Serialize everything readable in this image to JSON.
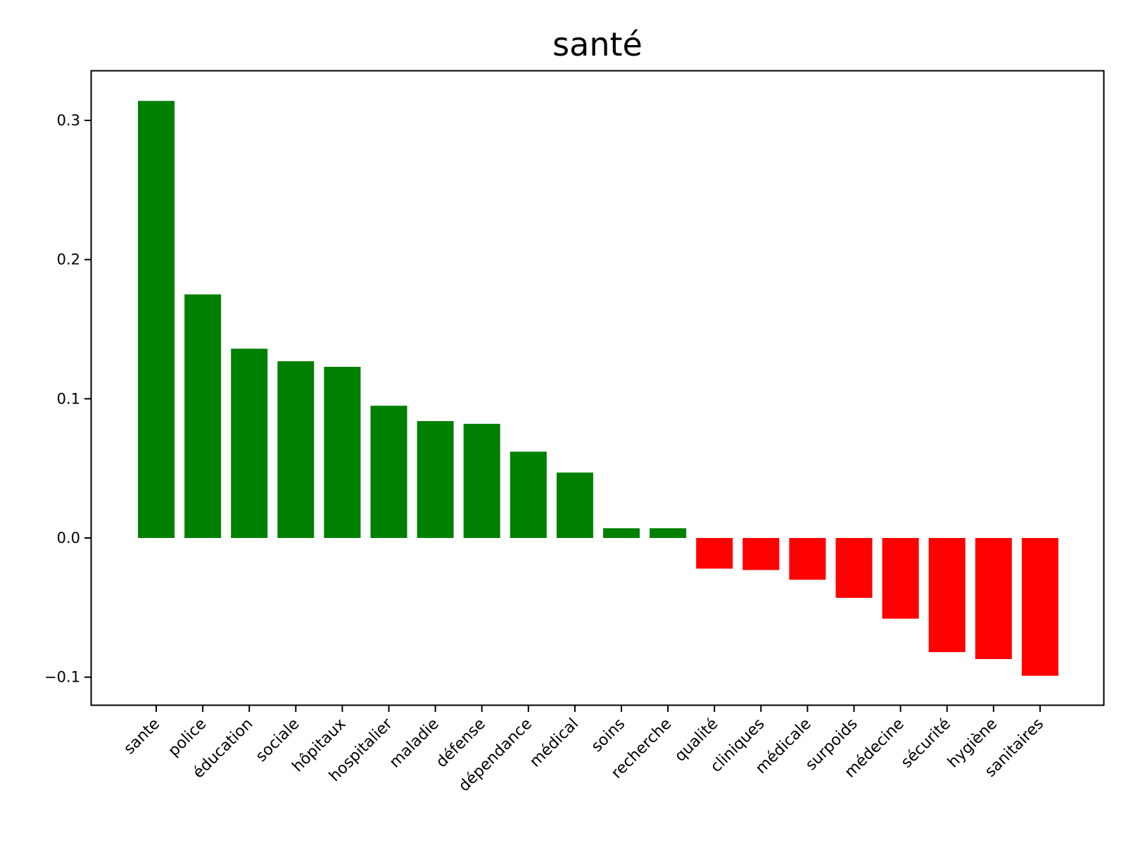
{
  "chart_data": {
    "type": "bar",
    "title": "santé",
    "xlabel": "",
    "ylabel": "",
    "categories": [
      "sante",
      "police",
      "éducation",
      "sociale",
      "hôpitaux",
      "hospitalier",
      "maladie",
      "défense",
      "dépendance",
      "médical",
      "soins",
      "recherche",
      "qualité",
      "cliniques",
      "médicale",
      "surpoids",
      "médecine",
      "sécurité",
      "hygiène",
      "sanitaires"
    ],
    "values": [
      0.314,
      0.175,
      0.136,
      0.127,
      0.123,
      0.095,
      0.084,
      0.082,
      0.062,
      0.047,
      0.007,
      0.007,
      -0.022,
      -0.023,
      -0.03,
      -0.043,
      -0.058,
      -0.082,
      -0.087,
      -0.099
    ],
    "ylim": [
      -0.12,
      0.335
    ],
    "yticks": [
      -0.1,
      0.0,
      0.1,
      0.2,
      0.3
    ],
    "ytick_labels": [
      "−0.1",
      "0.0",
      "0.1",
      "0.2",
      "0.3"
    ],
    "grid": false,
    "positive_color": "#008000",
    "negative_color": "#ff0000"
  }
}
